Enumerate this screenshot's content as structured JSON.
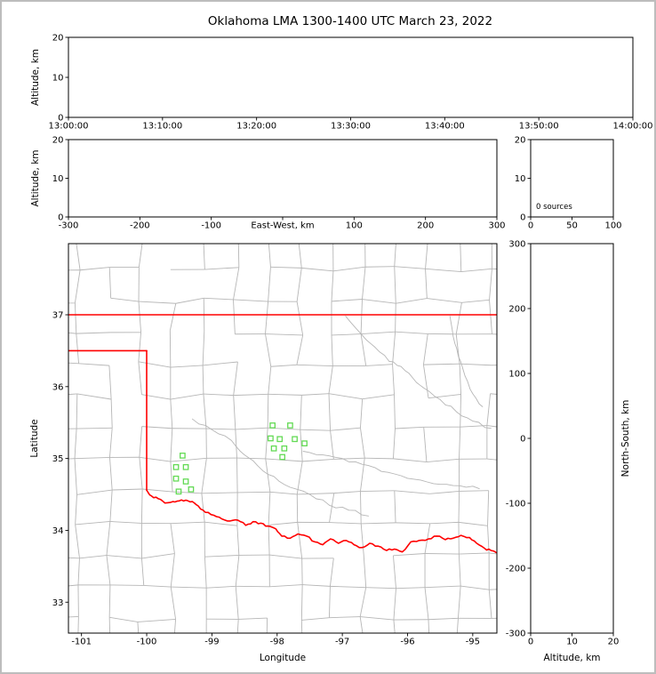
{
  "title": "Oklahoma LMA 1300-1400 UTC March 23, 2022",
  "frame": {
    "border_color": "#bdbdbd",
    "background": "#ffffff"
  },
  "colors": {
    "state_boundary": "#ff0000",
    "county_lines": "#b6b6b6",
    "river_lines": "#b6b6b6",
    "stations": "#63da54",
    "axes": "#000000"
  },
  "chart_data": [
    {
      "type": "scatter",
      "panel": "time-height",
      "ylabel": "Altitude, km",
      "ylim": [
        0,
        20
      ],
      "yticks": [
        0,
        10,
        20
      ],
      "xtick_labels": [
        "13:00:00",
        "13:10:00",
        "13:20:00",
        "13:30:00",
        "13:40:00",
        "13:50:00",
        "14:00:00"
      ],
      "points": []
    },
    {
      "type": "scatter",
      "panel": "ew-height",
      "xlabel": "East-West, km",
      "ylabel": "Altitude, km",
      "xlim": [
        -300,
        300
      ],
      "ylim": [
        0,
        20
      ],
      "xticks": [
        -300,
        -200,
        -100,
        0,
        100,
        200,
        300
      ],
      "yticks": [
        0,
        10,
        20
      ],
      "points": []
    },
    {
      "type": "histogram",
      "panel": "altitude-source-histogram",
      "xlim": [
        0,
        100
      ],
      "ylim": [
        0,
        20
      ],
      "xticks": [
        0,
        50,
        100
      ],
      "yticks": [
        0,
        10,
        20
      ],
      "annotation": "0 sources",
      "values": []
    },
    {
      "type": "map-scatter",
      "panel": "plan-view",
      "xlabel": "Longitude",
      "ylabel": "Latitude",
      "xlim": [
        -101.2,
        -94.63
      ],
      "ylim": [
        32.57,
        37.99
      ],
      "xticks": [
        -101,
        -100,
        -99,
        -98,
        -97,
        -96,
        -95
      ],
      "yticks": [
        33,
        34,
        35,
        36,
        37
      ],
      "stations": [
        [
          -99.45,
          35.04
        ],
        [
          -99.55,
          34.88
        ],
        [
          -99.4,
          34.88
        ],
        [
          -99.55,
          34.72
        ],
        [
          -99.4,
          34.68
        ],
        [
          -99.51,
          34.54
        ],
        [
          -99.32,
          34.57
        ],
        [
          -98.07,
          35.46
        ],
        [
          -97.8,
          35.46
        ],
        [
          -98.1,
          35.28
        ],
        [
          -97.96,
          35.27
        ],
        [
          -97.73,
          35.27
        ],
        [
          -97.58,
          35.21
        ],
        [
          -98.05,
          35.14
        ],
        [
          -97.89,
          35.14
        ],
        [
          -97.92,
          35.02
        ]
      ],
      "state_boundary": [
        [
          [
            -101.25,
            37.0
          ],
          [
            -94.43,
            37.0
          ]
        ],
        [
          [
            -101.25,
            36.5
          ],
          [
            -100.0,
            36.5
          ]
        ],
        [
          [
            -100.0,
            36.5
          ],
          [
            -100.0,
            34.56
          ]
        ],
        [
          [
            -94.618,
            37.0
          ],
          [
            -94.618,
            36.5
          ],
          [
            -94.43,
            36.5
          ]
        ],
        [
          [
            -100.0,
            34.56
          ],
          [
            -99.93,
            34.48
          ],
          [
            -99.82,
            34.44
          ],
          [
            -99.72,
            34.38
          ],
          [
            -99.6,
            34.4
          ],
          [
            -99.5,
            34.41
          ],
          [
            -99.4,
            34.42
          ],
          [
            -99.3,
            34.4
          ],
          [
            -99.21,
            34.34
          ],
          [
            -99.1,
            34.25
          ],
          [
            -98.97,
            34.21
          ],
          [
            -98.85,
            34.16
          ],
          [
            -98.72,
            34.13
          ],
          [
            -98.6,
            34.14
          ],
          [
            -98.48,
            34.07
          ],
          [
            -98.37,
            34.12
          ],
          [
            -98.25,
            34.1
          ],
          [
            -98.14,
            34.06
          ],
          [
            -98.02,
            34.02
          ],
          [
            -97.93,
            33.92
          ],
          [
            -97.8,
            33.89
          ],
          [
            -97.68,
            33.95
          ],
          [
            -97.55,
            33.92
          ],
          [
            -97.42,
            33.84
          ],
          [
            -97.3,
            33.8
          ],
          [
            -97.18,
            33.88
          ],
          [
            -97.06,
            33.82
          ],
          [
            -96.94,
            33.86
          ],
          [
            -96.82,
            33.8
          ],
          [
            -96.7,
            33.76
          ],
          [
            -96.58,
            33.82
          ],
          [
            -96.45,
            33.78
          ],
          [
            -96.32,
            33.72
          ],
          [
            -96.2,
            33.74
          ],
          [
            -96.08,
            33.7
          ],
          [
            -95.95,
            33.84
          ],
          [
            -95.82,
            33.86
          ],
          [
            -95.68,
            33.88
          ],
          [
            -95.55,
            33.92
          ],
          [
            -95.42,
            33.87
          ],
          [
            -95.3,
            33.89
          ],
          [
            -95.18,
            33.93
          ],
          [
            -95.05,
            33.9
          ],
          [
            -94.94,
            33.82
          ],
          [
            -94.82,
            33.75
          ],
          [
            -94.72,
            33.72
          ],
          [
            -94.6,
            33.68
          ]
        ]
      ],
      "rivers": [
        [
          [
            -96.95,
            36.98
          ],
          [
            -96.7,
            36.72
          ],
          [
            -96.5,
            36.55
          ],
          [
            -96.28,
            36.35
          ],
          [
            -96.1,
            36.28
          ],
          [
            -95.92,
            36.12
          ],
          [
            -95.75,
            35.98
          ],
          [
            -95.5,
            35.82
          ],
          [
            -95.25,
            35.65
          ],
          [
            -95.0,
            35.52
          ],
          [
            -94.72,
            35.42
          ]
        ],
        [
          [
            -97.6,
            35.1
          ],
          [
            -97.3,
            35.05
          ],
          [
            -97.0,
            35.0
          ],
          [
            -96.7,
            34.92
          ],
          [
            -96.4,
            34.82
          ],
          [
            -96.1,
            34.76
          ],
          [
            -95.8,
            34.7
          ],
          [
            -95.5,
            34.64
          ],
          [
            -95.2,
            34.62
          ],
          [
            -94.9,
            34.58
          ]
        ],
        [
          [
            -95.35,
            36.98
          ],
          [
            -95.3,
            36.7
          ],
          [
            -95.22,
            36.42
          ],
          [
            -95.12,
            36.15
          ],
          [
            -95.0,
            35.9
          ],
          [
            -94.85,
            35.72
          ]
        ],
        [
          [
            -99.3,
            35.55
          ],
          [
            -99.0,
            35.4
          ],
          [
            -98.7,
            35.25
          ],
          [
            -98.5,
            35.05
          ],
          [
            -98.3,
            34.9
          ],
          [
            -98.05,
            34.75
          ],
          [
            -97.8,
            34.6
          ],
          [
            -97.5,
            34.5
          ],
          [
            -97.2,
            34.35
          ],
          [
            -96.9,
            34.28
          ],
          [
            -96.6,
            34.2
          ]
        ]
      ]
    },
    {
      "type": "scatter",
      "panel": "ns-height",
      "xlabel": "Altitude, km",
      "ylabel": "North-South, km",
      "xlim": [
        0,
        20
      ],
      "ylim": [
        -300,
        300
      ],
      "xticks": [
        0,
        10,
        20
      ],
      "yticks": [
        300,
        200,
        100,
        0,
        -100,
        -200,
        -300
      ],
      "points": []
    }
  ]
}
